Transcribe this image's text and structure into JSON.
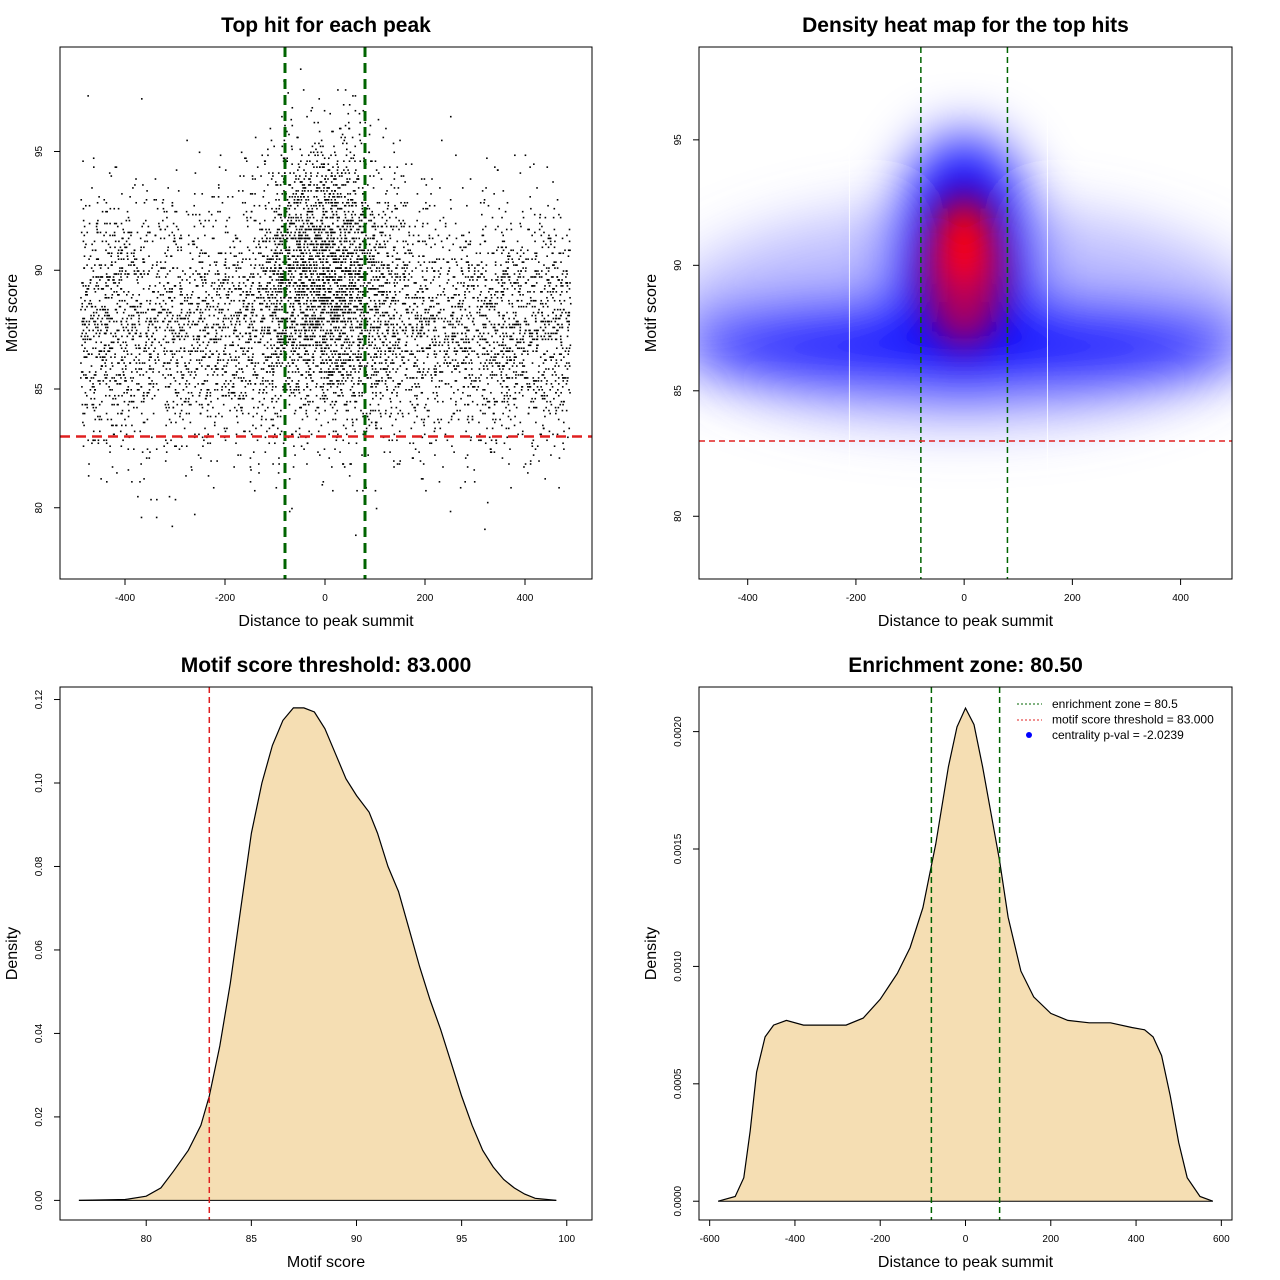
{
  "chart_data": [
    {
      "type": "scatter",
      "title": "Top hit for each peak",
      "xlabel": "Distance to peak summit",
      "ylabel": "Motif score",
      "xlim": [
        -530,
        534
      ],
      "ylim": [
        77,
        99.4
      ],
      "xticks": [
        -400,
        -200,
        0,
        200,
        400
      ],
      "yticks": [
        80,
        85,
        90,
        95
      ],
      "vlines": [
        -80,
        80
      ],
      "hline": 83,
      "points_summary": {
        "n_approx": 7000,
        "x_range": [
          -490,
          490
        ],
        "background_score_mean": 87.5,
        "center_score_mean": 90.5
      }
    },
    {
      "type": "heatmap",
      "title": "Density heat map for the top hits",
      "xlabel": "Distance to peak summit",
      "ylabel": "Motif score",
      "xlim": [
        -490,
        495
      ],
      "ylim": [
        77.5,
        98.7
      ],
      "xticks": [
        -400,
        -200,
        0,
        200,
        400
      ],
      "yticks": [
        80,
        85,
        90,
        95
      ],
      "vlines": [
        -80,
        80
      ],
      "hline": 83,
      "hotspot": {
        "x": 0,
        "y": 91
      }
    },
    {
      "type": "area",
      "title": "Motif score threshold: 83.000",
      "xlabel": "Motif score",
      "ylabel": "Density",
      "xlim": [
        75.9,
        101.2
      ],
      "ylim": [
        -0.0047,
        0.123
      ],
      "xticks": [
        80,
        85,
        90,
        95,
        100
      ],
      "yticks": [
        0.0,
        0.02,
        0.04,
        0.06,
        0.08,
        0.1,
        0.12
      ],
      "ytick_labels": [
        "0.00",
        "0.02",
        "0.04",
        "0.06",
        "0.08",
        "0.10",
        "0.12"
      ],
      "vline": 83,
      "x": [
        76.8,
        79,
        80,
        80.7,
        81.3,
        82,
        82.6,
        83,
        83.5,
        84,
        84.5,
        85,
        85.5,
        86,
        86.5,
        87,
        87.5,
        88,
        88.5,
        89,
        89.5,
        90,
        90.6,
        91,
        91.5,
        92,
        92.5,
        93,
        93.5,
        94,
        94.5,
        95,
        95.5,
        96,
        96.5,
        97,
        97.5,
        98,
        98.5,
        99.5
      ],
      "y": [
        0,
        0.0002,
        0.001,
        0.003,
        0.007,
        0.012,
        0.018,
        0.025,
        0.037,
        0.052,
        0.07,
        0.088,
        0.1,
        0.109,
        0.115,
        0.118,
        0.118,
        0.117,
        0.113,
        0.107,
        0.101,
        0.097,
        0.093,
        0.088,
        0.08,
        0.074,
        0.065,
        0.056,
        0.048,
        0.041,
        0.033,
        0.025,
        0.018,
        0.012,
        0.008,
        0.005,
        0.003,
        0.0015,
        0.0005,
        0
      ]
    },
    {
      "type": "area",
      "title": "Enrichment zone: 80.50",
      "xlabel": "Distance to peak summit",
      "ylabel": "Density",
      "xlim": [
        -625,
        625
      ],
      "ylim": [
        -8e-05,
        0.00219
      ],
      "xticks": [
        -600,
        -400,
        -200,
        0,
        200,
        400,
        600
      ],
      "yticks": [
        0.0,
        0.0005,
        0.001,
        0.0015,
        0.002
      ],
      "ytick_labels": [
        "0.0000",
        "0.0005",
        "0.0010",
        "0.0015",
        "0.0020"
      ],
      "vlines": [
        -80,
        80
      ],
      "x": [
        -580,
        -540,
        -520,
        -505,
        -490,
        -470,
        -450,
        -420,
        -380,
        -330,
        -280,
        -240,
        -200,
        -160,
        -130,
        -100,
        -70,
        -40,
        -20,
        0,
        20,
        40,
        60,
        80,
        100,
        130,
        160,
        200,
        240,
        290,
        340,
        390,
        420,
        440,
        460,
        480,
        500,
        520,
        550,
        580
      ],
      "y": [
        0,
        2e-05,
        0.0001,
        0.0003,
        0.00055,
        0.0007,
        0.00075,
        0.00077,
        0.00075,
        0.00075,
        0.00075,
        0.00078,
        0.00086,
        0.00097,
        0.00108,
        0.00125,
        0.00152,
        0.00185,
        0.00202,
        0.0021,
        0.00203,
        0.00185,
        0.00165,
        0.00145,
        0.00121,
        0.00098,
        0.00087,
        0.0008,
        0.00077,
        0.00076,
        0.00076,
        0.00074,
        0.00073,
        0.0007,
        0.00062,
        0.00045,
        0.00025,
        0.0001,
        2e-05,
        0
      ],
      "legend": {
        "placement": "top-right",
        "entries": [
          "enrichment zone = 80.5",
          "motif score threshold = 83.000",
          "centrality p-val = -2.0239"
        ]
      }
    }
  ],
  "colors": {
    "fill": "#f5deb3",
    "green": "#006400",
    "red": "#ff0000",
    "blue": "#0000ff"
  }
}
